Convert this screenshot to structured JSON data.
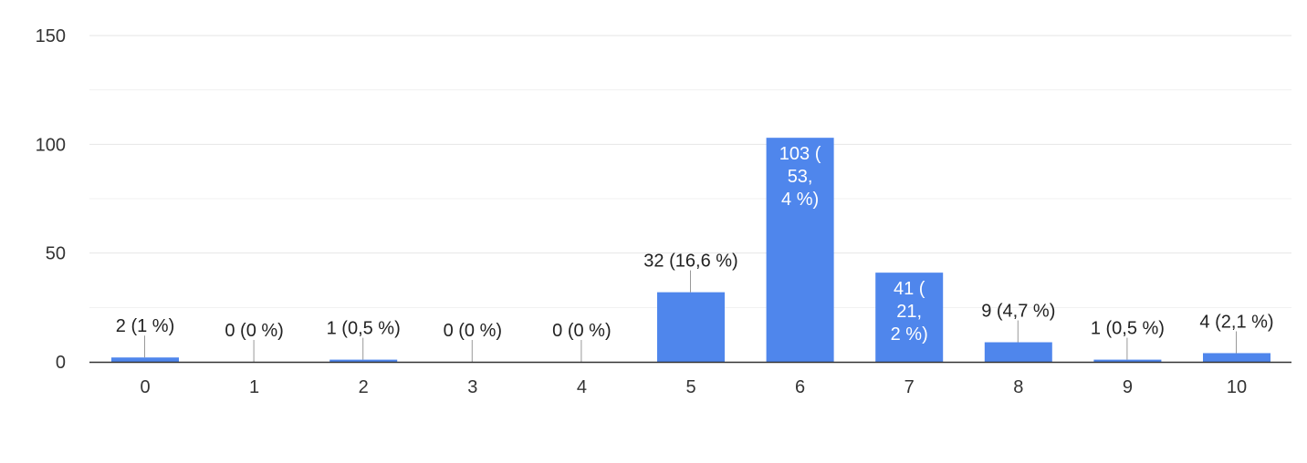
{
  "chart_data": {
    "type": "bar",
    "title": "",
    "xlabel": "",
    "ylabel": "",
    "categories": [
      "0",
      "1",
      "2",
      "3",
      "4",
      "5",
      "6",
      "7",
      "8",
      "9",
      "10"
    ],
    "values": [
      2,
      0,
      1,
      0,
      0,
      32,
      103,
      41,
      9,
      1,
      4
    ],
    "data_labels": [
      "2 (1 %)",
      "0 (0 %)",
      "1 (0,5 %)",
      "0 (0 %)",
      "0 (0 %)",
      "32 (16,6 %)",
      [
        "103 (",
        "53,",
        "4 %)"
      ],
      [
        "41 (",
        "21,",
        "2 %)"
      ],
      "9 (4,7 %)",
      "1 (0,5 %)",
      "4 (2,1 %)"
    ],
    "ylim": [
      0,
      150
    ],
    "yticks": [
      0,
      50,
      100,
      150
    ],
    "grid": true,
    "legend": "none",
    "bar_color": "#4f86ec"
  }
}
